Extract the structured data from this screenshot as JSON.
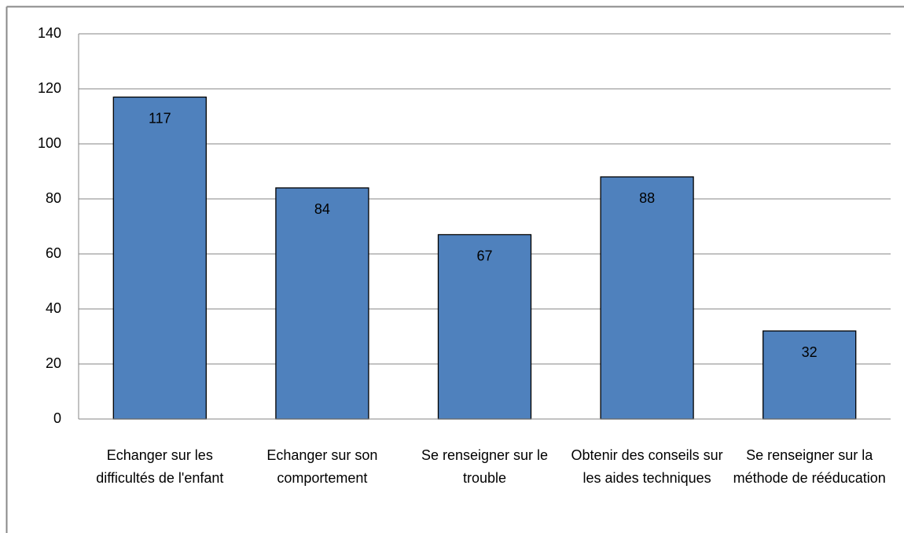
{
  "chart_data": {
    "type": "bar",
    "categories": [
      "Echanger sur les difficultés de l'enfant",
      "Echanger sur son comportement",
      "Se renseigner sur le trouble",
      "Obtenir des conseils sur les aides techniques",
      "Se renseigner sur la méthode de rééducation"
    ],
    "values": [
      117,
      84,
      67,
      88,
      32
    ],
    "color": "#4f81bd",
    "ylim": [
      0,
      140
    ],
    "yticks": [
      0,
      20,
      40,
      60,
      80,
      100,
      120,
      140
    ],
    "grid": true,
    "data_labels": true
  }
}
